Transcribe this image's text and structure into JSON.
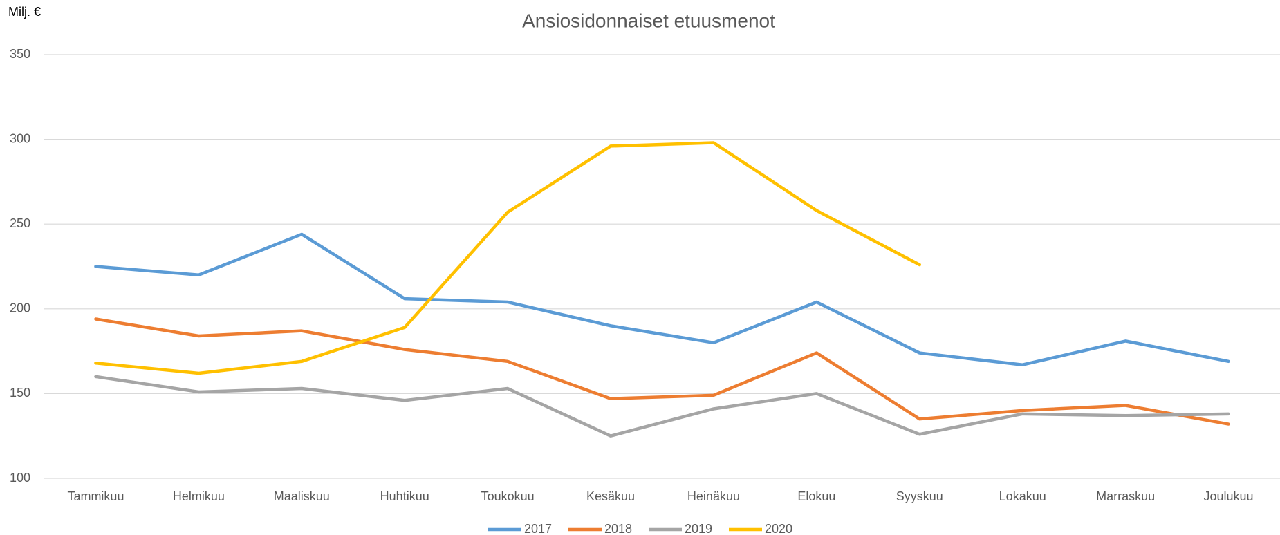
{
  "chart_data": {
    "type": "line",
    "title": "Ansiosidonnaiset etuusmenot",
    "ylabel": "Milj. €",
    "categories": [
      "Tammikuu",
      "Helmikuu",
      "Maaliskuu",
      "Huhtikuu",
      "Toukokuu",
      "Kesäkuu",
      "Heinäkuu",
      "Elokuu",
      "Syyskuu",
      "Lokakuu",
      "Marraskuu",
      "Joulukuu"
    ],
    "series": [
      {
        "name": "2017",
        "color": "#5b9bd5",
        "values": [
          225,
          220,
          244,
          206,
          204,
          190,
          180,
          204,
          174,
          167,
          181,
          169
        ]
      },
      {
        "name": "2018",
        "color": "#ed7d31",
        "values": [
          194,
          184,
          187,
          176,
          169,
          147,
          149,
          174,
          135,
          140,
          143,
          132
        ]
      },
      {
        "name": "2019",
        "color": "#a5a5a5",
        "values": [
          160,
          151,
          153,
          146,
          153,
          125,
          141,
          150,
          126,
          138,
          137,
          138
        ]
      },
      {
        "name": "2020",
        "color": "#ffc000",
        "values": [
          168,
          162,
          169,
          189,
          257,
          296,
          298,
          258,
          226,
          null,
          null,
          null
        ]
      }
    ],
    "ylim": [
      100,
      350
    ],
    "yticks": [
      100,
      150,
      200,
      250,
      300,
      350
    ],
    "grid": true,
    "legend": "bottom"
  }
}
